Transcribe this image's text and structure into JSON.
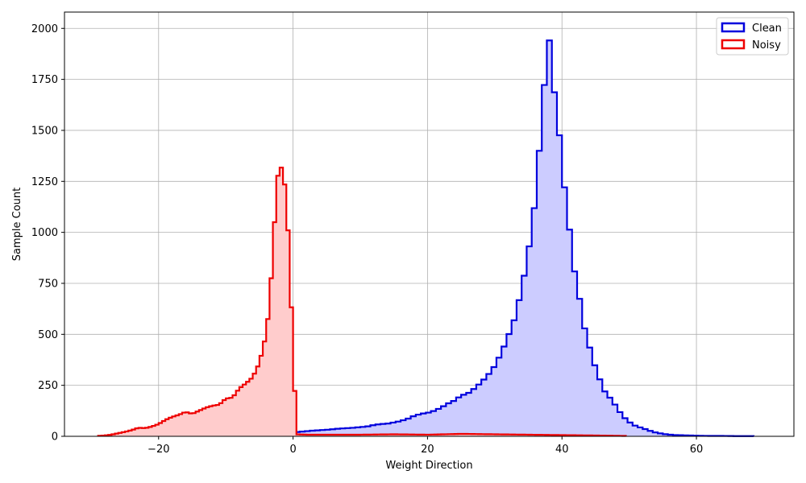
{
  "chart_data": {
    "type": "histogram",
    "title": "",
    "xlabel": "Weight Direction",
    "ylabel": "Sample Count",
    "xlim": [
      -34,
      74.5
    ],
    "ylim": [
      0,
      2080
    ],
    "xticks": [
      -20,
      0,
      20,
      40,
      60
    ],
    "yticks": [
      0,
      250,
      500,
      750,
      1000,
      1250,
      1500,
      1750,
      2000
    ],
    "grid": true,
    "legend_position": "top-right",
    "series": [
      {
        "name": "Clean",
        "color": "#0000dd",
        "fill": "#ccccff",
        "bin_start": -26,
        "bin_width": 0.75,
        "points": [
          [
            -26,
            2
          ],
          [
            -24,
            3
          ],
          [
            -22,
            3
          ],
          [
            -20,
            5
          ],
          [
            -18,
            7
          ],
          [
            -17,
            9
          ],
          [
            -16,
            12
          ],
          [
            -15,
            10
          ],
          [
            -14,
            12
          ],
          [
            -13,
            15
          ],
          [
            -12,
            18
          ],
          [
            -11,
            15
          ],
          [
            -10,
            20
          ],
          [
            -9,
            22
          ],
          [
            -8,
            20
          ],
          [
            -7,
            25
          ],
          [
            -6,
            28
          ],
          [
            -5,
            26
          ],
          [
            -4,
            28
          ],
          [
            -3,
            27
          ],
          [
            -2,
            28
          ],
          [
            -1,
            25
          ],
          [
            0,
            20
          ],
          [
            1,
            22
          ],
          [
            2,
            25
          ],
          [
            3,
            28
          ],
          [
            4,
            30
          ],
          [
            5,
            32
          ],
          [
            6,
            35
          ],
          [
            7,
            38
          ],
          [
            8,
            40
          ],
          [
            9,
            42
          ],
          [
            10,
            45
          ],
          [
            11,
            48
          ],
          [
            12,
            55
          ],
          [
            13,
            60
          ],
          [
            14,
            62
          ],
          [
            15,
            68
          ],
          [
            16,
            75
          ],
          [
            17,
            85
          ],
          [
            18,
            100
          ],
          [
            19,
            110
          ],
          [
            20,
            115
          ],
          [
            21,
            125
          ],
          [
            22,
            140
          ],
          [
            23,
            160
          ],
          [
            24,
            175
          ],
          [
            25,
            200
          ],
          [
            26,
            210
          ],
          [
            27,
            235
          ],
          [
            28,
            265
          ],
          [
            29,
            300
          ],
          [
            30,
            345
          ],
          [
            31,
            410
          ],
          [
            32,
            490
          ],
          [
            33,
            580
          ],
          [
            34,
            720
          ],
          [
            35,
            900
          ],
          [
            36,
            1150
          ],
          [
            37,
            1550
          ],
          [
            37.5,
            1780
          ],
          [
            38,
            1985
          ],
          [
            38.75,
            1720
          ],
          [
            39.5,
            1520
          ],
          [
            40.25,
            1255
          ],
          [
            41,
            1050
          ],
          [
            41.75,
            830
          ],
          [
            42.5,
            700
          ],
          [
            43.25,
            545
          ],
          [
            44,
            450
          ],
          [
            44.75,
            360
          ],
          [
            45.5,
            290
          ],
          [
            46.25,
            225
          ],
          [
            47,
            195
          ],
          [
            48,
            150
          ],
          [
            49,
            100
          ],
          [
            50,
            70
          ],
          [
            51,
            50
          ],
          [
            52,
            40
          ],
          [
            53,
            28
          ],
          [
            54,
            18
          ],
          [
            55,
            12
          ],
          [
            56,
            8
          ],
          [
            57,
            6
          ],
          [
            58,
            5
          ],
          [
            59,
            4
          ],
          [
            60,
            3
          ],
          [
            62,
            2
          ],
          [
            64,
            2
          ],
          [
            66,
            1
          ],
          [
            68,
            1
          ]
        ]
      },
      {
        "name": "Noisy",
        "color": "#ee0000",
        "fill": "#ffcccc",
        "bin_start": -29,
        "bin_width": 0.5,
        "points": [
          [
            -29,
            2
          ],
          [
            -28,
            4
          ],
          [
            -27,
            8
          ],
          [
            -26,
            15
          ],
          [
            -25,
            22
          ],
          [
            -24,
            30
          ],
          [
            -23,
            42
          ],
          [
            -22,
            40
          ],
          [
            -21,
            48
          ],
          [
            -20,
            60
          ],
          [
            -19,
            80
          ],
          [
            -18,
            95
          ],
          [
            -17,
            105
          ],
          [
            -16,
            120
          ],
          [
            -15,
            110
          ],
          [
            -14,
            125
          ],
          [
            -13,
            140
          ],
          [
            -12,
            150
          ],
          [
            -11,
            155
          ],
          [
            -10,
            185
          ],
          [
            -9,
            190
          ],
          [
            -8,
            235
          ],
          [
            -7,
            260
          ],
          [
            -6,
            290
          ],
          [
            -5,
            360
          ],
          [
            -4.5,
            430
          ],
          [
            -4,
            500
          ],
          [
            -3.5,
            650
          ],
          [
            -3,
            900
          ],
          [
            -2.5,
            1200
          ],
          [
            -2,
            1355
          ],
          [
            -1.5,
            1280
          ],
          [
            -1,
            1190
          ],
          [
            -0.5,
            830
          ],
          [
            0,
            435
          ],
          [
            0.5,
            10
          ],
          [
            2,
            8
          ],
          [
            5,
            8
          ],
          [
            10,
            8
          ],
          [
            15,
            10
          ],
          [
            20,
            8
          ],
          [
            25,
            12
          ],
          [
            30,
            10
          ],
          [
            35,
            8
          ],
          [
            40,
            6
          ],
          [
            45,
            4
          ],
          [
            49,
            2
          ]
        ]
      }
    ]
  }
}
